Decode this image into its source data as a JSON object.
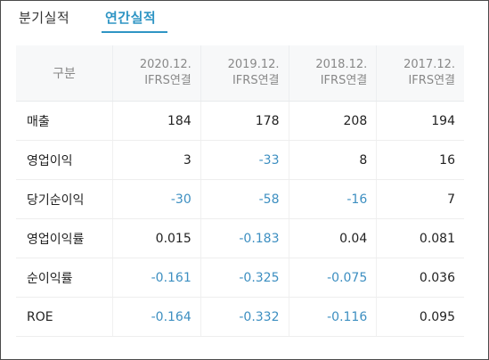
{
  "tabs": [
    {
      "label": "분기실적",
      "active": false
    },
    {
      "label": "연간실적",
      "active": true
    }
  ],
  "table": {
    "corner": "구분",
    "columns": [
      {
        "period": "2020.12.",
        "basis": "IFRS연결"
      },
      {
        "period": "2019.12.",
        "basis": "IFRS연결"
      },
      {
        "period": "2018.12.",
        "basis": "IFRS연결"
      },
      {
        "period": "2017.12.",
        "basis": "IFRS연결"
      }
    ],
    "rows": [
      {
        "label": "매출",
        "values": [
          "184",
          "178",
          "208",
          "194"
        ]
      },
      {
        "label": "영업이익",
        "values": [
          "3",
          "-33",
          "8",
          "16"
        ]
      },
      {
        "label": "당기순이익",
        "values": [
          "-30",
          "-58",
          "-16",
          "7"
        ]
      },
      {
        "label": "영업이익률",
        "values": [
          "0.015",
          "-0.183",
          "0.04",
          "0.081"
        ]
      },
      {
        "label": "순이익률",
        "values": [
          "-0.161",
          "-0.325",
          "-0.075",
          "0.036"
        ]
      },
      {
        "label": "ROE",
        "values": [
          "-0.164",
          "-0.332",
          "-0.116",
          "0.095"
        ]
      }
    ]
  },
  "colors": {
    "accent": "#2f95c4",
    "negative": "#3d8fc1",
    "text": "#222222",
    "muted": "#888888"
  }
}
